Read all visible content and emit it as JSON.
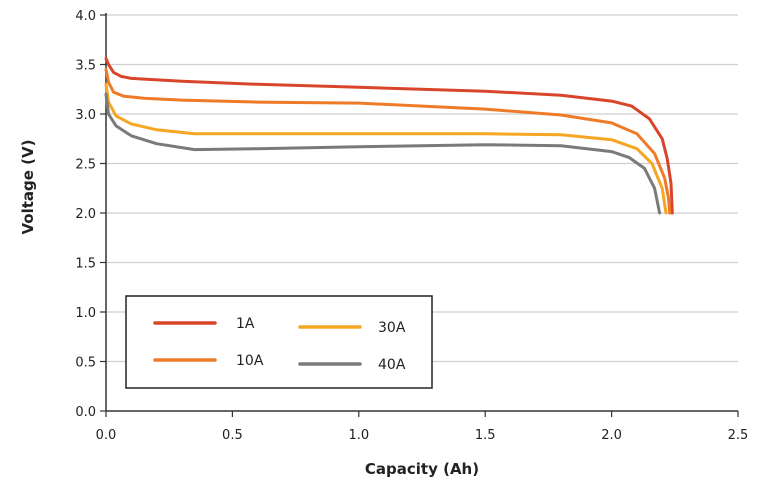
{
  "chart_data": {
    "type": "line",
    "xlabel": "Capacity (Ah)",
    "ylabel": "Voltage (V)",
    "xlim": [
      0,
      2.5
    ],
    "ylim": [
      0,
      4.0
    ],
    "x_ticks": [
      "0.0",
      "0.5",
      "1.0",
      "1.5",
      "2.0",
      "2.5"
    ],
    "y_ticks": [
      "0.0",
      "0.5",
      "1.0",
      "1.5",
      "2.0",
      "2.5",
      "3.0",
      "3.5",
      "4.0"
    ],
    "grid": "horizontal",
    "legend_position": "bottom-left",
    "series": [
      {
        "name": "1A",
        "color": "#d9452a",
        "points": [
          [
            0.0,
            3.56
          ],
          [
            0.01,
            3.5
          ],
          [
            0.03,
            3.42
          ],
          [
            0.06,
            3.38
          ],
          [
            0.1,
            3.36
          ],
          [
            0.3,
            3.33
          ],
          [
            0.6,
            3.3
          ],
          [
            1.0,
            3.27
          ],
          [
            1.5,
            3.23
          ],
          [
            1.8,
            3.19
          ],
          [
            2.0,
            3.13
          ],
          [
            2.08,
            3.08
          ],
          [
            2.15,
            2.95
          ],
          [
            2.2,
            2.75
          ],
          [
            2.22,
            2.55
          ],
          [
            2.235,
            2.3
          ],
          [
            2.24,
            2.0
          ]
        ]
      },
      {
        "name": "10A",
        "color": "#ee7b28",
        "points": [
          [
            0.0,
            3.45
          ],
          [
            0.01,
            3.32
          ],
          [
            0.03,
            3.22
          ],
          [
            0.07,
            3.18
          ],
          [
            0.15,
            3.16
          ],
          [
            0.3,
            3.14
          ],
          [
            0.6,
            3.12
          ],
          [
            1.0,
            3.11
          ],
          [
            1.5,
            3.05
          ],
          [
            1.8,
            2.99
          ],
          [
            2.0,
            2.91
          ],
          [
            2.1,
            2.8
          ],
          [
            2.17,
            2.6
          ],
          [
            2.21,
            2.35
          ],
          [
            2.225,
            2.15
          ],
          [
            2.23,
            2.0
          ]
        ]
      },
      {
        "name": "30A",
        "color": "#f5a623",
        "points": [
          [
            0.0,
            3.3
          ],
          [
            0.01,
            3.12
          ],
          [
            0.04,
            2.98
          ],
          [
            0.1,
            2.9
          ],
          [
            0.2,
            2.84
          ],
          [
            0.35,
            2.8
          ],
          [
            0.6,
            2.8
          ],
          [
            1.0,
            2.8
          ],
          [
            1.5,
            2.8
          ],
          [
            1.8,
            2.79
          ],
          [
            2.0,
            2.74
          ],
          [
            2.1,
            2.65
          ],
          [
            2.16,
            2.5
          ],
          [
            2.2,
            2.25
          ],
          [
            2.215,
            2.0
          ]
        ]
      },
      {
        "name": "40A",
        "color": "#7a7a7a",
        "points": [
          [
            0.0,
            3.2
          ],
          [
            0.01,
            3.0
          ],
          [
            0.04,
            2.88
          ],
          [
            0.1,
            2.78
          ],
          [
            0.2,
            2.7
          ],
          [
            0.35,
            2.64
          ],
          [
            0.6,
            2.65
          ],
          [
            1.0,
            2.67
          ],
          [
            1.5,
            2.69
          ],
          [
            1.8,
            2.68
          ],
          [
            2.0,
            2.62
          ],
          [
            2.07,
            2.56
          ],
          [
            2.13,
            2.45
          ],
          [
            2.17,
            2.25
          ],
          [
            2.19,
            2.0
          ]
        ]
      }
    ]
  }
}
